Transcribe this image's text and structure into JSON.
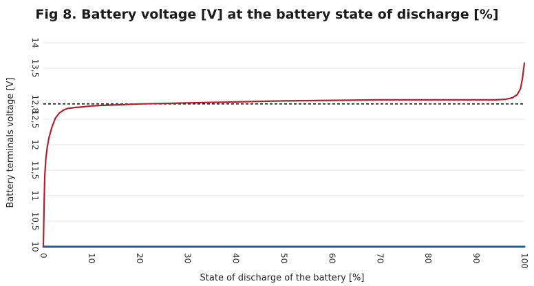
{
  "chart_data": {
    "type": "line",
    "title": "Fig 8. Battery voltage [V] at the battery state of discharge [%]",
    "xlabel": "State of discharge of the battery [%]",
    "ylabel": "Battery terminals voltage [V]",
    "xlim": [
      0,
      100
    ],
    "ylim": [
      10,
      14
    ],
    "x_ticks": [
      "0",
      "10",
      "20",
      "30",
      "40",
      "50",
      "60",
      "70",
      "80",
      "90",
      "100"
    ],
    "y_ticks": [
      {
        "value": 10,
        "label": "10"
      },
      {
        "value": 10.5,
        "label": "10,5"
      },
      {
        "value": 11,
        "label": "11"
      },
      {
        "value": 11.5,
        "label": "11,5"
      },
      {
        "value": 12,
        "label": "12"
      },
      {
        "value": 12.5,
        "label": "12,5"
      },
      {
        "value": 12.8,
        "label": "12,8"
      },
      {
        "value": 13.5,
        "label": "13,5"
      },
      {
        "value": 14,
        "label": "14"
      }
    ],
    "grid": true,
    "series": [
      {
        "color": "#b0222b",
        "x": [
          0,
          0.15,
          0.3,
          0.5,
          0.8,
          1.2,
          1.8,
          2.5,
          3.3,
          4.2,
          5.0,
          6.5,
          8,
          10,
          12,
          15,
          20,
          25,
          30,
          40,
          50,
          60,
          70,
          80,
          90,
          94,
          96,
          97.5,
          98.5,
          99.2,
          99.6,
          100
        ],
        "y": [
          10.0,
          10.8,
          11.4,
          11.7,
          11.95,
          12.15,
          12.35,
          12.52,
          12.62,
          12.68,
          12.71,
          12.73,
          12.74,
          12.76,
          12.77,
          12.78,
          12.8,
          12.81,
          12.82,
          12.84,
          12.86,
          12.87,
          12.88,
          12.88,
          12.88,
          12.88,
          12.89,
          12.92,
          12.98,
          13.1,
          13.3,
          13.6
        ]
      },
      {
        "color": "#1f5e99",
        "x": [
          0,
          100
        ],
        "y": [
          10.0,
          10.0
        ]
      }
    ],
    "reference_line": {
      "y": 12.8,
      "style": "dashed",
      "color": "#1a1a1a"
    }
  }
}
